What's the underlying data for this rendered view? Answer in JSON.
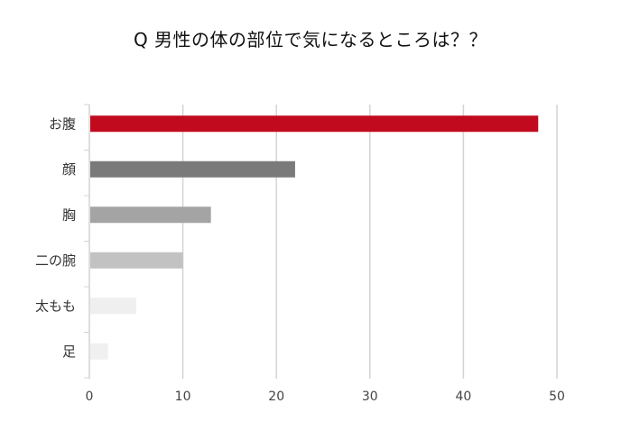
{
  "chart_data": {
    "type": "bar",
    "orientation": "horizontal",
    "title": "Q 男性の体の部位で気になるところは？？",
    "xlabel": "",
    "ylabel": "",
    "categories": [
      "お腹",
      "顔",
      "胸",
      "二の腕",
      "太もも",
      "足"
    ],
    "values": [
      48,
      22,
      13,
      10,
      5,
      2
    ],
    "bar_colors": [
      "#c10a1e",
      "#7a7a7a",
      "#a4a4a4",
      "#c2c2c2",
      "#efefef",
      "#f0f0f0"
    ],
    "xlim": [
      0,
      50
    ],
    "xticks": [
      0,
      10,
      20,
      30,
      40,
      50
    ],
    "grid": "vertical",
    "legend": "none"
  }
}
